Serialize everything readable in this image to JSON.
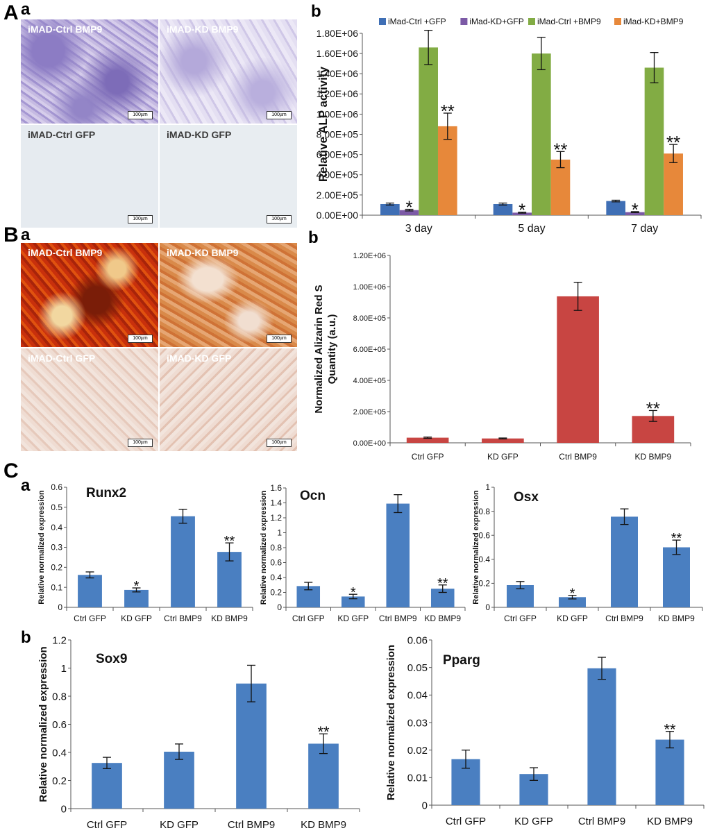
{
  "panels": {
    "A": "A",
    "A_a": "a",
    "A_b": "b",
    "B": "B",
    "B_a": "a",
    "B_b": "b",
    "C": "C",
    "C_a": "a",
    "C_b": "b"
  },
  "images": {
    "alp": [
      {
        "label": "iMAD-Ctrl BMP9",
        "scale": "100µm",
        "style": "purple-strong"
      },
      {
        "label": "iMAD-KD BMP9",
        "scale": "100µm",
        "style": "purple-light"
      },
      {
        "label": "iMAD-Ctrl GFP",
        "scale": "100µm",
        "style": "plain"
      },
      {
        "label": "iMAD-KD GFP",
        "scale": "100µm",
        "style": "plain"
      }
    ],
    "ars": [
      {
        "label": "iMAD-Ctrl BMP9",
        "scale": "100µm",
        "style": "red-strong"
      },
      {
        "label": "iMAD-KD BMP9",
        "scale": "100µm",
        "style": "orange"
      },
      {
        "label": "iMAD-Ctrl GFP",
        "scale": "100µm",
        "style": "pink"
      },
      {
        "label": "iMAD-KD GFP",
        "scale": "100µm",
        "style": "pink"
      }
    ]
  },
  "chart_data": [
    {
      "id": "alp",
      "type": "bar",
      "title": "",
      "ylabel": "Relative ALP activity",
      "xlabel": "",
      "categories": [
        "3 day",
        "5 day",
        "7 day"
      ],
      "ylim": [
        0,
        1800000
      ],
      "yticks": [
        0,
        200000,
        400000,
        600000,
        800000,
        1000000,
        1200000,
        1400000,
        1600000,
        1800000
      ],
      "ytick_labels": [
        "0.00E+00",
        "2.00E+05",
        "4.00E+05",
        "6.00E+05",
        "8.00E+05",
        "1.00E+06",
        "1.20E+06",
        "1.40E+06",
        "1.60E+06",
        "1.80E+06"
      ],
      "legend_position": "top",
      "series": [
        {
          "name": "iMad-Ctrl +GFP",
          "color": "#3f6fb5",
          "values": [
            110000,
            110000,
            140000
          ],
          "errors": [
            10000,
            10000,
            8000
          ],
          "marks": [
            "",
            "",
            ""
          ]
        },
        {
          "name": "iMad-KD+GFP",
          "color": "#7c5aa6",
          "values": [
            50000,
            25000,
            30000
          ],
          "errors": [
            8000,
            5000,
            5000
          ],
          "marks": [
            "*",
            "*",
            "*"
          ]
        },
        {
          "name": "iMad-Ctrl +BMP9",
          "color": "#82ac44",
          "values": [
            1660000,
            1600000,
            1460000
          ],
          "errors": [
            170000,
            160000,
            150000
          ],
          "marks": [
            "",
            "",
            ""
          ]
        },
        {
          "name": "iMad-KD+BMP9",
          "color": "#e7883a",
          "values": [
            880000,
            550000,
            610000
          ],
          "errors": [
            130000,
            80000,
            90000
          ],
          "marks": [
            "**",
            "**",
            "**"
          ]
        }
      ]
    },
    {
      "id": "ars",
      "type": "bar",
      "title": "",
      "ylabel": "Normalized Alizarin Red S Quantity (a.u.)",
      "ylabel_lines": [
        "Normalized Alizarin Red S",
        "Quantity (a.u.)"
      ],
      "xlabel": "",
      "categories": [
        "Ctrl GFP",
        "KD GFP",
        "Ctrl BMP9",
        "KD BMP9"
      ],
      "ylim": [
        0,
        1200000
      ],
      "yticks": [
        0,
        200000,
        400000,
        600000,
        800000,
        1000000,
        1200000
      ],
      "ytick_labels": [
        "0.00E+00",
        "2.00E+05",
        "4.00E+05",
        "6.00E+05",
        "8.00E+05",
        "1.00E+06",
        "1.20E+06"
      ],
      "series": [
        {
          "name": "Alizarin Red S",
          "color": "#c84542",
          "values": [
            33000,
            28000,
            938000,
            172000
          ],
          "errors": [
            4000,
            3000,
            90000,
            35000
          ],
          "marks": [
            "",
            "",
            "",
            "**"
          ]
        }
      ]
    },
    {
      "id": "runx2",
      "type": "bar",
      "title": "Runx2",
      "ylabel": "Relative normalized expression",
      "xlabel": "",
      "categories": [
        "Ctrl GFP",
        "KD GFP",
        "Ctrl BMP9",
        "KD BMP9"
      ],
      "ylim": [
        0,
        0.6
      ],
      "yticks": [
        0,
        0.1,
        0.2,
        0.3,
        0.4,
        0.5,
        0.6
      ],
      "ytick_labels": [
        "0",
        "0.1",
        "0.2",
        "0.3",
        "0.4",
        "0.5",
        "0.6"
      ],
      "series": [
        {
          "name": "Runx2",
          "color": "#4a7fc1",
          "values": [
            0.162,
            0.087,
            0.455,
            0.277
          ],
          "errors": [
            0.015,
            0.01,
            0.035,
            0.045
          ],
          "marks": [
            "",
            "*",
            "",
            "**"
          ]
        }
      ]
    },
    {
      "id": "ocn",
      "type": "bar",
      "title": "Ocn",
      "ylabel": "Relative normalized expression",
      "xlabel": "",
      "categories": [
        "Ctrl GFP",
        "KD GFP",
        "Ctrl BMP9",
        "KD BMP9"
      ],
      "ylim": [
        0,
        1.6
      ],
      "yticks": [
        0,
        0.2,
        0.4,
        0.6,
        0.8,
        1.0,
        1.2,
        1.4,
        1.6
      ],
      "ytick_labels": [
        "0",
        "0.2",
        "0.4",
        "0.6",
        "0.8",
        "1",
        "1.2",
        "1.4",
        "1.6"
      ],
      "series": [
        {
          "name": "Ocn",
          "color": "#4a7fc1",
          "values": [
            0.285,
            0.145,
            1.39,
            0.25
          ],
          "errors": [
            0.05,
            0.03,
            0.12,
            0.05
          ],
          "marks": [
            "",
            "*",
            "",
            "**"
          ]
        }
      ]
    },
    {
      "id": "osx",
      "type": "bar",
      "title": "Osx",
      "ylabel": "Relative normalized expression",
      "xlabel": "",
      "categories": [
        "Ctrl GFP",
        "KD GFP",
        "Ctrl BMP9",
        "KD BMP9"
      ],
      "ylim": [
        0,
        1
      ],
      "yticks": [
        0,
        0.2,
        0.4,
        0.6,
        0.8,
        1
      ],
      "ytick_labels": [
        "0",
        "0.2",
        "0.4",
        "0.6",
        "0.8",
        "1"
      ],
      "series": [
        {
          "name": "Osx",
          "color": "#4a7fc1",
          "values": [
            0.185,
            0.085,
            0.755,
            0.5
          ],
          "errors": [
            0.03,
            0.015,
            0.065,
            0.06
          ],
          "marks": [
            "",
            "*",
            "",
            "**"
          ]
        }
      ]
    },
    {
      "id": "sox9",
      "type": "bar",
      "title": "Sox9",
      "ylabel": "Relative normalized expression",
      "xlabel": "",
      "categories": [
        "Ctrl GFP",
        "KD GFP",
        "Ctrl BMP9",
        "KD BMP9"
      ],
      "ylim": [
        0,
        1.2
      ],
      "yticks": [
        0,
        0.2,
        0.4,
        0.6,
        0.8,
        1.0,
        1.2
      ],
      "ytick_labels": [
        "0",
        "0.2",
        "0.4",
        "0.6",
        "0.8",
        "1",
        "1.2"
      ],
      "series": [
        {
          "name": "Sox9",
          "color": "#4a7fc1",
          "values": [
            0.325,
            0.405,
            0.89,
            0.462
          ],
          "errors": [
            0.04,
            0.055,
            0.13,
            0.07
          ],
          "marks": [
            "",
            "",
            "",
            "**"
          ]
        }
      ]
    },
    {
      "id": "pparg",
      "type": "bar",
      "title": "Pparg",
      "ylabel": "Relative normalized expression",
      "xlabel": "",
      "categories": [
        "Ctrl GFP",
        "KD GFP",
        "Ctrl BMP9",
        "KD BMP9"
      ],
      "ylim": [
        0,
        0.06
      ],
      "yticks": [
        0,
        0.01,
        0.02,
        0.03,
        0.04,
        0.05,
        0.06
      ],
      "ytick_labels": [
        "0",
        "0.01",
        "0.02",
        "0.03",
        "0.04",
        "0.05",
        "0.06"
      ],
      "series": [
        {
          "name": "Pparg",
          "color": "#4a7fc1",
          "values": [
            0.0167,
            0.0113,
            0.0497,
            0.0238
          ],
          "errors": [
            0.0033,
            0.0023,
            0.004,
            0.003
          ],
          "marks": [
            "",
            "",
            "",
            "**"
          ]
        }
      ]
    }
  ]
}
